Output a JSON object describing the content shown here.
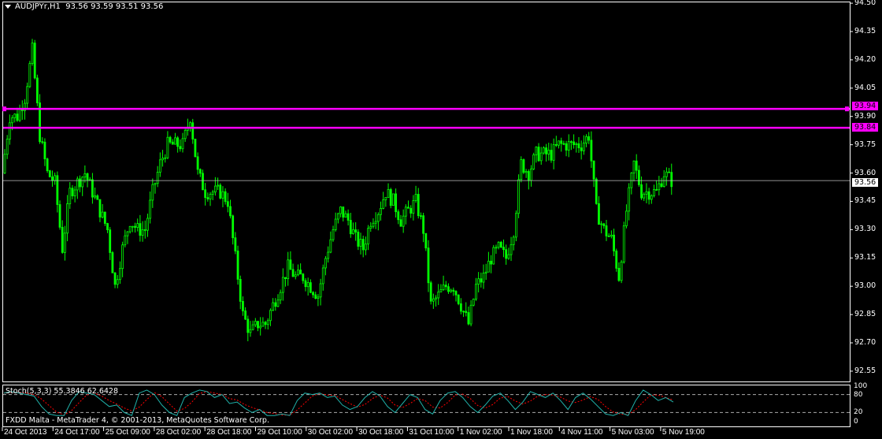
{
  "header": {
    "symbol": "AUDJPYr,H1",
    "ohlc": "93.56 93.59 93.51 93.56"
  },
  "colors": {
    "bull": "#00ff00",
    "level_line": "#ff00ff",
    "stoch_main": "#20b2aa",
    "stoch_signal": "#ff0000",
    "bid_line": "#c0c0c0"
  },
  "stoch": {
    "label": "Stoch(5,3,3) 55.3846 62.6428",
    "levels": [
      "100",
      "80",
      "20",
      "0"
    ]
  },
  "footer": {
    "copyright": "FXDD Malta - MetaTrader 4, © 2001-2013, MetaQuotes Software Corp."
  },
  "chart_data": {
    "type": "candlestick",
    "price_axis": [
      "94.50",
      "94.35",
      "94.20",
      "94.05",
      "93.90",
      "93.75",
      "93.60",
      "93.45",
      "93.30",
      "93.15",
      "93.00",
      "92.85",
      "92.70",
      "92.55"
    ],
    "ylim": [
      92.52,
      94.51
    ],
    "time_axis": [
      "24 Oct 2013",
      "24 Oct 17:00",
      "25 Oct 09:00",
      "28 Oct 02:00",
      "28 Oct 18:00",
      "29 Oct 10:00",
      "30 Oct 02:00",
      "30 Oct 18:00",
      "31 Oct 10:00",
      "1 Nov 02:00",
      "1 Nov 18:00",
      "4 Nov 11:00",
      "5 Nov 03:00",
      "5 Nov 19:00"
    ],
    "horizontal_levels": [
      {
        "value": 93.94,
        "label": "93.94"
      },
      {
        "value": 93.84,
        "label": "93.84"
      }
    ],
    "bid": {
      "value": 93.56,
      "label": "93.56"
    },
    "closes": [
      93.6,
      93.9,
      93.9,
      94.0,
      94.25,
      93.8,
      93.6,
      93.55,
      93.2,
      93.5,
      93.55,
      93.6,
      93.5,
      93.4,
      93.3,
      93.0,
      93.2,
      93.35,
      93.3,
      93.3,
      93.5,
      93.65,
      93.75,
      93.75,
      93.75,
      93.9,
      93.6,
      93.5,
      93.5,
      93.5,
      93.45,
      93.15,
      92.85,
      92.75,
      92.8,
      92.8,
      92.9,
      93.0,
      93.1,
      93.05,
      93.05,
      93.0,
      92.95,
      93.15,
      93.3,
      93.4,
      93.35,
      93.25,
      93.2,
      93.35,
      93.4,
      93.5,
      93.45,
      93.35,
      93.4,
      93.45,
      93.3,
      92.9,
      92.95,
      93.0,
      93.0,
      92.9,
      92.8,
      93.0,
      93.05,
      93.15,
      93.2,
      93.15,
      93.3,
      93.65,
      93.6,
      93.7,
      93.7,
      93.7,
      93.75,
      93.75,
      93.75,
      93.75,
      93.8,
      93.4,
      93.3,
      93.25,
      93.05,
      93.4,
      93.65,
      93.5,
      93.5,
      93.5,
      93.6,
      93.56
    ],
    "stoch_main": [
      85,
      90,
      85,
      80,
      75,
      40,
      15,
      10,
      10,
      60,
      90,
      85,
      80,
      60,
      40,
      45,
      20,
      10,
      85,
      95,
      80,
      45,
      20,
      10,
      70,
      85,
      95,
      90,
      70,
      80,
      50,
      55,
      35,
      20,
      30,
      10,
      10,
      15,
      10,
      60,
      85,
      80,
      85,
      70,
      75,
      45,
      30,
      40,
      70,
      90,
      75,
      40,
      20,
      50,
      80,
      70,
      30,
      15,
      60,
      85,
      90,
      70,
      40,
      20,
      45,
      75,
      85,
      60,
      30,
      55,
      90,
      80,
      70,
      85,
      60,
      30,
      70,
      85,
      65,
      40,
      15,
      10,
      20,
      10,
      60,
      95,
      80,
      60,
      70,
      55
    ]
  }
}
